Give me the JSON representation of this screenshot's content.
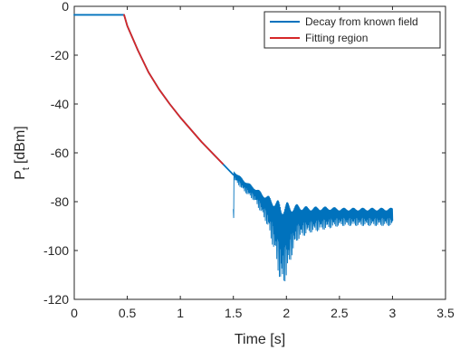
{
  "chart_data": {
    "type": "line",
    "title": "",
    "xlabel": "Time [s]",
    "ylabel_main": "P",
    "ylabel_sub": "t",
    "ylabel_unit": "[dBm]",
    "xlim": [
      0,
      3.5
    ],
    "ylim": [
      -120,
      0
    ],
    "xticks": [
      0,
      0.5,
      1,
      1.5,
      2,
      2.5,
      3,
      3.5
    ],
    "xtick_labels": [
      "0",
      "0.5",
      "1",
      "1.5",
      "2",
      "2.5",
      "3",
      "3.5"
    ],
    "yticks": [
      0,
      -20,
      -40,
      -60,
      -80,
      -100,
      -120
    ],
    "ytick_labels": [
      "0",
      "-20",
      "-40",
      "-60",
      "-80",
      "-100",
      "-120"
    ],
    "grid": false,
    "legend_position": "top-right",
    "series": [
      {
        "name": "Decay from known field",
        "color": "#0072BD",
        "x": [
          0,
          0.1,
          0.2,
          0.3,
          0.4,
          0.47,
          0.5,
          0.6,
          0.7,
          0.8,
          0.9,
          1.0,
          1.1,
          1.2,
          1.3,
          1.4,
          1.5,
          1.6,
          1.7,
          1.8,
          1.9,
          1.95,
          2.0,
          2.1,
          2.2,
          2.3,
          2.4,
          2.5,
          2.6,
          2.7,
          2.8,
          2.9,
          3.0
        ],
        "y": [
          -3.5,
          -3.5,
          -3.5,
          -3.5,
          -3.5,
          -3.5,
          -8,
          -18,
          -27,
          -34,
          -40,
          -45.5,
          -50.5,
          -55.5,
          -60,
          -64.5,
          -69,
          -73,
          -77,
          -81,
          -87,
          -116,
          -93,
          -86,
          -85,
          -85,
          -85,
          -85,
          -85,
          -86,
          -86,
          -86,
          -86
        ],
        "noise_band": {
          "x": [
            1.5,
            1.6,
            1.7,
            1.8,
            1.85,
            1.9,
            1.95,
            2.0,
            2.05,
            2.1,
            2.2,
            2.3,
            2.4,
            2.5,
            2.6,
            2.7,
            2.8,
            2.9,
            3.0
          ],
          "upper": [
            -67,
            -71,
            -74,
            -77,
            -78,
            -79,
            -80,
            -80,
            -81,
            -81,
            -82,
            -82,
            -82,
            -82.5,
            -82.5,
            -82.5,
            -82.5,
            -82.5,
            -82.5
          ],
          "lower": [
            -71,
            -76,
            -80,
            -88,
            -95,
            -104,
            -116,
            -111,
            -102,
            -96,
            -93,
            -92,
            -91,
            -90,
            -90,
            -90,
            -90,
            -90,
            -90
          ]
        }
      },
      {
        "name": "Fitting region",
        "color": "#D62728",
        "x": [
          0.47,
          0.5,
          0.6,
          0.7,
          0.8,
          0.9,
          1.0,
          1.1,
          1.2,
          1.3,
          1.4
        ],
        "y": [
          -3.5,
          -8,
          -18,
          -27,
          -34,
          -40,
          -45.5,
          -50.5,
          -55.5,
          -60,
          -64.5
        ]
      }
    ]
  }
}
